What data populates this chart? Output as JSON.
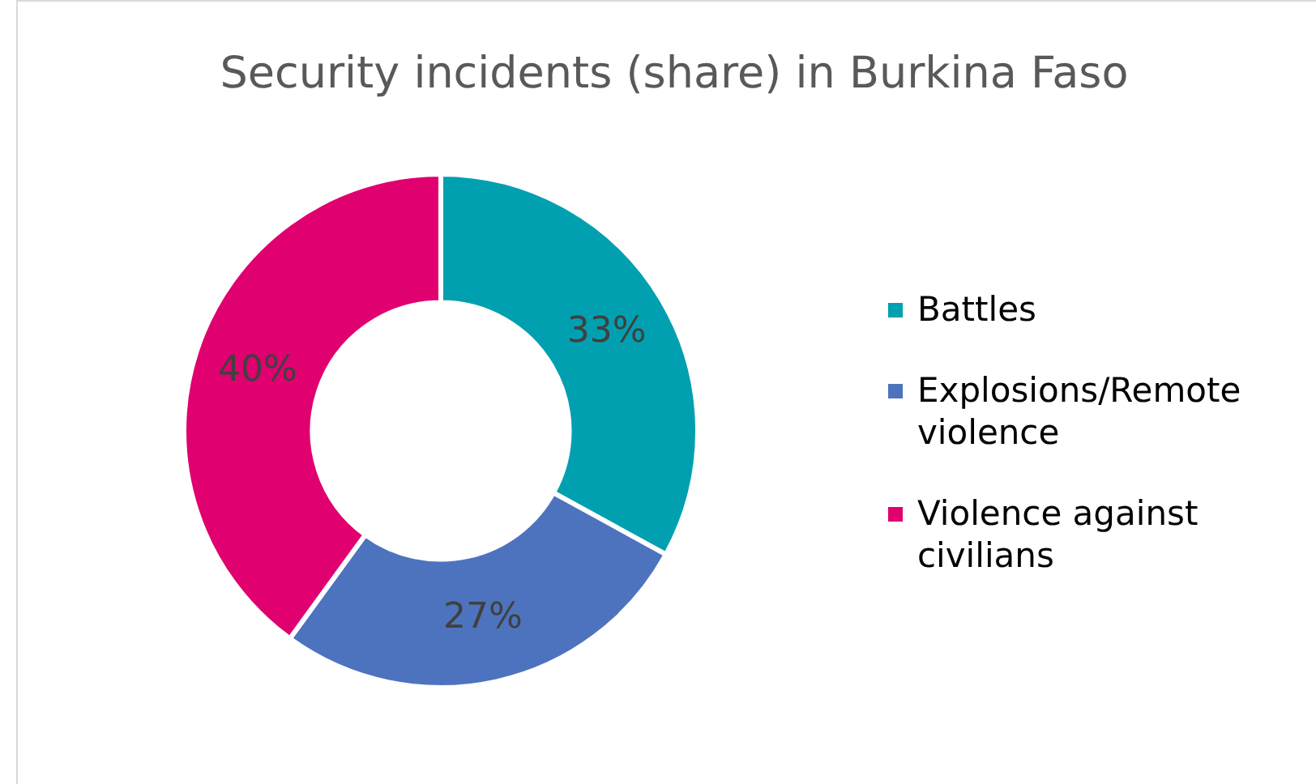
{
  "chart_data": {
    "type": "donut",
    "title": "Security incidents (share) in Burkina Faso",
    "categories": [
      "Battles",
      "Explosions/Remote violence",
      "Violence against civilians"
    ],
    "values": [
      33,
      27,
      40
    ],
    "colors": [
      "#00a0b1",
      "#4e73be",
      "#e0006f"
    ],
    "value_labels": [
      "33%",
      "27%",
      "40%"
    ],
    "legend": "right"
  }
}
